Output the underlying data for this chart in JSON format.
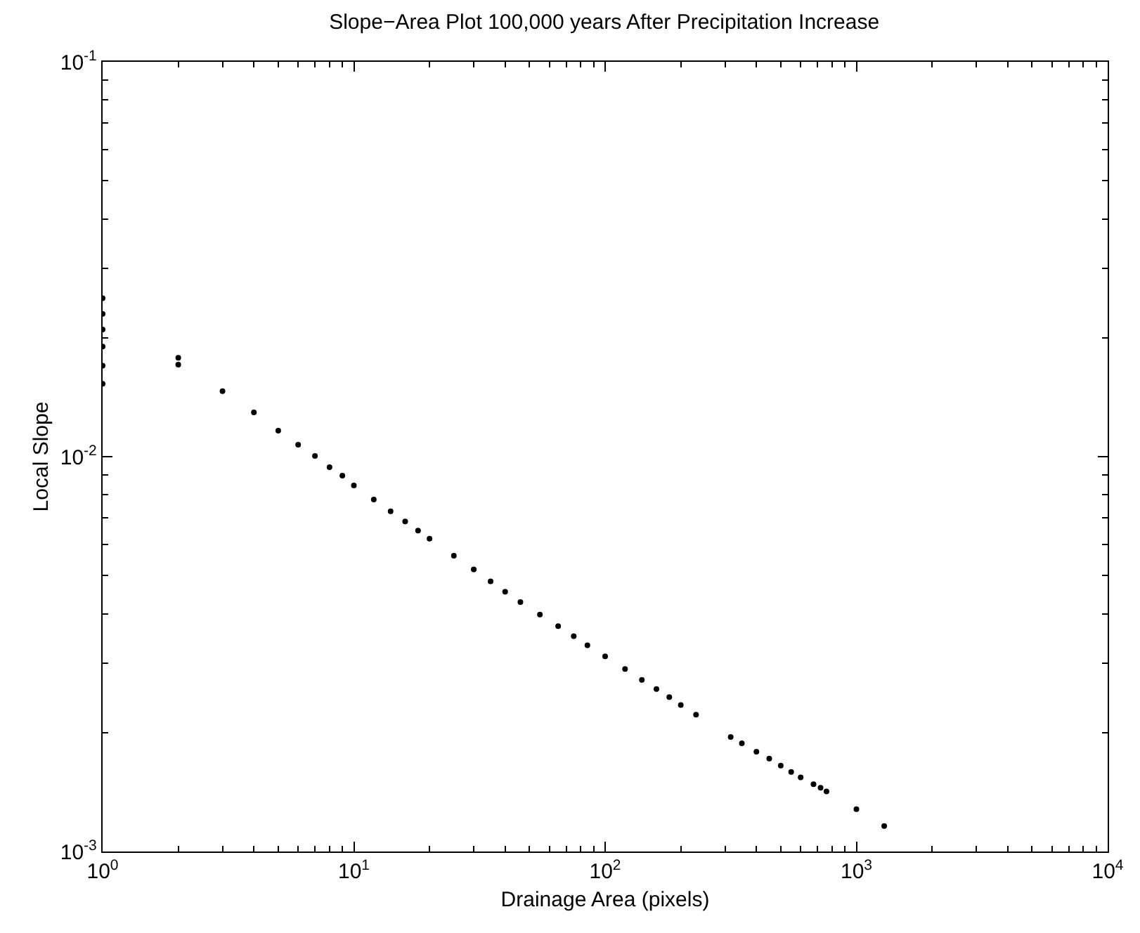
{
  "chart_data": {
    "type": "scatter",
    "title": "Slope−Area Plot 100,000 years After Precipitation Increase",
    "xlabel": "Drainage Area (pixels)",
    "ylabel": "Local Slope",
    "log": "xy",
    "marker": "circle",
    "xlim": [
      1,
      10000
    ],
    "ylim": [
      0.001,
      0.1
    ],
    "xticks": [
      {
        "value": 1,
        "label": "10$^{0}$"
      },
      {
        "value": 10,
        "label": "10$^{1}$"
      },
      {
        "value": 100,
        "label": "10$^{2}$"
      },
      {
        "value": 1000,
        "label": "10$^{3}$"
      },
      {
        "value": 10000,
        "label": "10$^{4}$"
      }
    ],
    "yticks": [
      {
        "value": 0.001,
        "label": "10$^{-3}$"
      },
      {
        "value": 0.01,
        "label": "10$^{-2}$"
      },
      {
        "value": 0.1,
        "label": "10$^{-1}$"
      }
    ],
    "series": [
      {
        "color": "#000000",
        "x": [
          1,
          1,
          1,
          1,
          1,
          1,
          2,
          2,
          3,
          4,
          5,
          6,
          7,
          8,
          9,
          10,
          12,
          14,
          16,
          18,
          20,
          25,
          30,
          35,
          40,
          46,
          55,
          65,
          75,
          85,
          100,
          120,
          140,
          160,
          180,
          200,
          230,
          316,
          350,
          400,
          450,
          500,
          550,
          600,
          675,
          720,
          760,
          1000,
          1290
        ],
        "values": [
          0.0252,
          0.023,
          0.021,
          0.019,
          0.017,
          0.0153,
          0.0178,
          0.0171,
          0.01466,
          0.01294,
          0.01164,
          0.01072,
          0.01004,
          0.0094,
          0.00895,
          0.00845,
          0.00779,
          0.00727,
          0.00685,
          0.0065,
          0.0062,
          0.00561,
          0.00518,
          0.00483,
          0.00455,
          0.00428,
          0.00398,
          0.00372,
          0.00351,
          0.00333,
          0.00312,
          0.0029,
          0.00272,
          0.00258,
          0.00246,
          0.00235,
          0.00222,
          0.00195,
          0.00188,
          0.00179,
          0.00172,
          0.00165,
          0.00159,
          0.00154,
          0.00148,
          0.00145,
          0.00142,
          0.00128,
          0.00116
        ]
      }
    ]
  }
}
